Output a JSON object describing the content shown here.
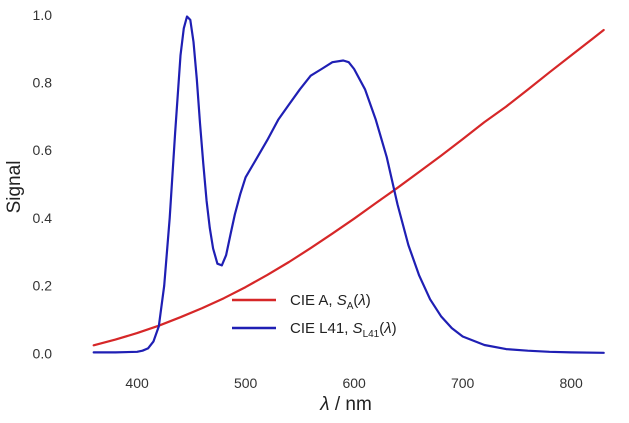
{
  "chart_data": {
    "type": "line",
    "xlabel": {
      "var": "λ",
      "unit": " / nm"
    },
    "ylabel": "Signal",
    "xlim": [
      340,
      845
    ],
    "ylim": [
      -0.04,
      1.02
    ],
    "xticks": [
      400,
      500,
      600,
      700,
      800
    ],
    "yticks": [
      0.0,
      0.2,
      0.4,
      0.6,
      0.8,
      1.0
    ],
    "xtick_labels": [
      "400",
      "500",
      "600",
      "700",
      "800"
    ],
    "ytick_labels": [
      "0.0",
      "0.2",
      "0.4",
      "0.6",
      "0.8",
      "1.0"
    ],
    "grid": false,
    "legend_position": "lower-center",
    "series": [
      {
        "name": "CIE A, S_A(λ)",
        "legend": {
          "prefix": "CIE A, ",
          "symbol": "S",
          "sub": "A",
          "arg": "(λ)"
        },
        "color": "#d62728",
        "x": [
          360,
          380,
          400,
          420,
          440,
          460,
          480,
          500,
          520,
          540,
          560,
          580,
          600,
          620,
          640,
          660,
          680,
          700,
          720,
          740,
          760,
          780,
          800,
          820,
          830
        ],
        "y": [
          0.024,
          0.041,
          0.06,
          0.082,
          0.107,
          0.134,
          0.163,
          0.196,
          0.232,
          0.27,
          0.311,
          0.354,
          0.398,
          0.444,
          0.489,
          0.536,
          0.584,
          0.633,
          0.683,
          0.729,
          0.779,
          0.83,
          0.88,
          0.93,
          0.955
        ]
      },
      {
        "name": "CIE L41, S_L41(λ)",
        "legend": {
          "prefix": "CIE L41, ",
          "symbol": "S",
          "sub": "L41",
          "arg": "(λ)"
        },
        "color": "#1f1fb4",
        "x": [
          360,
          380,
          400,
          405,
          410,
          415,
          420,
          425,
          430,
          435,
          440,
          443,
          446,
          449,
          452,
          455,
          458,
          461,
          464,
          467,
          470,
          474,
          478,
          482,
          486,
          490,
          495,
          500,
          510,
          520,
          530,
          540,
          550,
          560,
          570,
          580,
          590,
          595,
          600,
          610,
          620,
          630,
          640,
          650,
          660,
          670,
          680,
          690,
          700,
          720,
          740,
          760,
          780,
          800,
          830
        ],
        "y": [
          0.003,
          0.003,
          0.005,
          0.008,
          0.015,
          0.035,
          0.08,
          0.2,
          0.4,
          0.65,
          0.88,
          0.96,
          0.995,
          0.985,
          0.92,
          0.81,
          0.68,
          0.56,
          0.45,
          0.37,
          0.31,
          0.265,
          0.26,
          0.29,
          0.35,
          0.41,
          0.47,
          0.52,
          0.575,
          0.63,
          0.69,
          0.735,
          0.78,
          0.82,
          0.84,
          0.86,
          0.865,
          0.86,
          0.84,
          0.78,
          0.69,
          0.58,
          0.44,
          0.32,
          0.23,
          0.16,
          0.11,
          0.075,
          0.05,
          0.025,
          0.013,
          0.008,
          0.005,
          0.003,
          0.002
        ]
      }
    ]
  }
}
